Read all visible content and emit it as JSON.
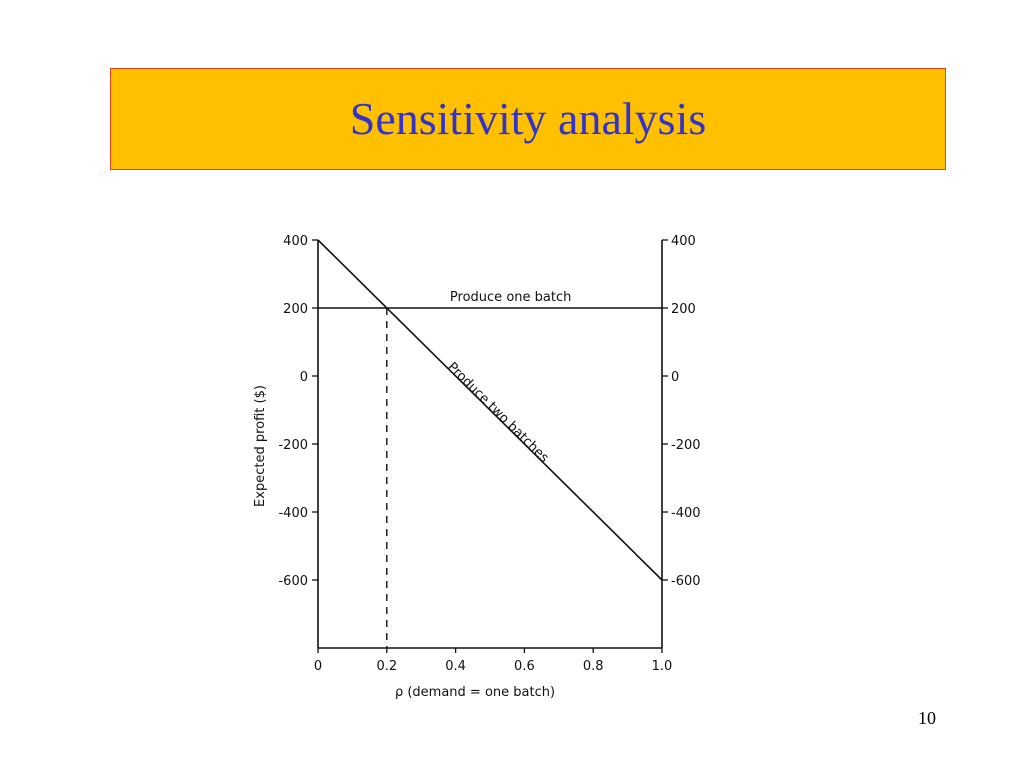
{
  "slide": {
    "title": "Sensitivity analysis",
    "page_number": "10"
  },
  "colors": {
    "banner_fill": "#FFC000",
    "banner_border": "#E8401A",
    "title_text": "#3333CC",
    "chart_ink": "#111111"
  },
  "chart_data": {
    "type": "line",
    "title": "",
    "xlabel": "ρ (demand = one batch)",
    "ylabel": "Expected profit ($)",
    "xlim": [
      0,
      1.0
    ],
    "ylim": [
      -800,
      400
    ],
    "x_ticks": [
      0,
      0.2,
      0.4,
      0.6,
      0.8,
      1.0
    ],
    "x_tick_labels": [
      "0",
      "0.2",
      "0.4",
      "0.6",
      "0.8",
      "1.0"
    ],
    "y_ticks": [
      400,
      200,
      0,
      -200,
      -400,
      -600
    ],
    "y_tick_labels": [
      "400",
      "200",
      "0",
      "-200",
      "-400",
      "-600"
    ],
    "grid": false,
    "secondary_y_axis": true,
    "series": [
      {
        "name": "Produce one batch",
        "x": [
          0,
          1.0
        ],
        "y": [
          200,
          200
        ]
      },
      {
        "name": "Produce two batches",
        "x": [
          0,
          1.0
        ],
        "y": [
          400,
          -600
        ]
      }
    ],
    "annotations": [
      {
        "type": "vertical-dashed-line",
        "x": 0.2,
        "from_y": 200,
        "to_y": -800
      }
    ]
  }
}
